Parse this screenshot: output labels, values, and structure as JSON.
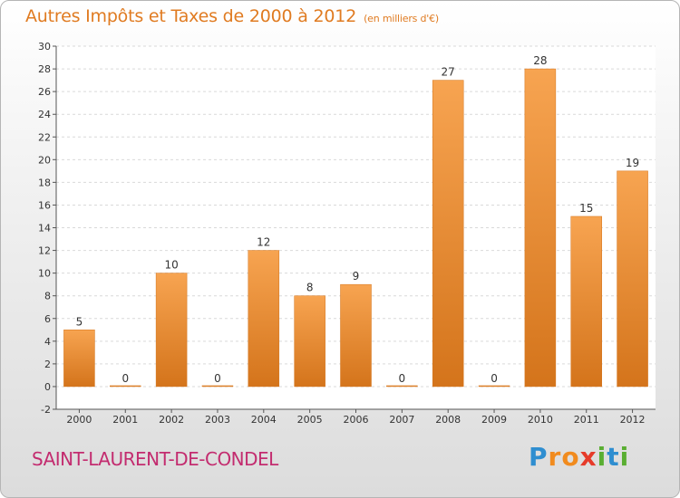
{
  "header": {
    "title": "Autres Impôts et Taxes de 2000 à 2012",
    "subtitle": "(en milliers d'€)"
  },
  "footer": {
    "commune": "SAINT-LAURENT-DE-CONDEL",
    "logo_letters": [
      "P",
      "r",
      "o",
      "x",
      "i",
      "t",
      "i"
    ]
  },
  "colors": {
    "bar_light": "#f7a451",
    "bar_dark": "#d4741b",
    "title": "#e07b21",
    "commune": "#c32c6f",
    "grid": "#d9d9d9"
  },
  "chart_data": {
    "type": "bar",
    "title": "Autres Impôts et Taxes de 2000 à 2012",
    "subtitle": "(en milliers d'€)",
    "categories": [
      "2000",
      "2001",
      "2002",
      "2003",
      "2004",
      "2005",
      "2006",
      "2007",
      "2008",
      "2009",
      "2010",
      "2011",
      "2012"
    ],
    "values": [
      5,
      0,
      10,
      0,
      12,
      8,
      9,
      0,
      27,
      0,
      28,
      15,
      19
    ],
    "data_labels": [
      "5",
      "0",
      "10",
      "0",
      "12",
      "8",
      "9",
      "0",
      "27",
      "0",
      "28",
      "15",
      "19"
    ],
    "ylim": [
      -2,
      30
    ],
    "yticks": [
      -2,
      0,
      2,
      4,
      6,
      8,
      10,
      12,
      14,
      16,
      18,
      20,
      22,
      24,
      26,
      28,
      30
    ],
    "grid": true,
    "xlabel": "",
    "ylabel": ""
  }
}
